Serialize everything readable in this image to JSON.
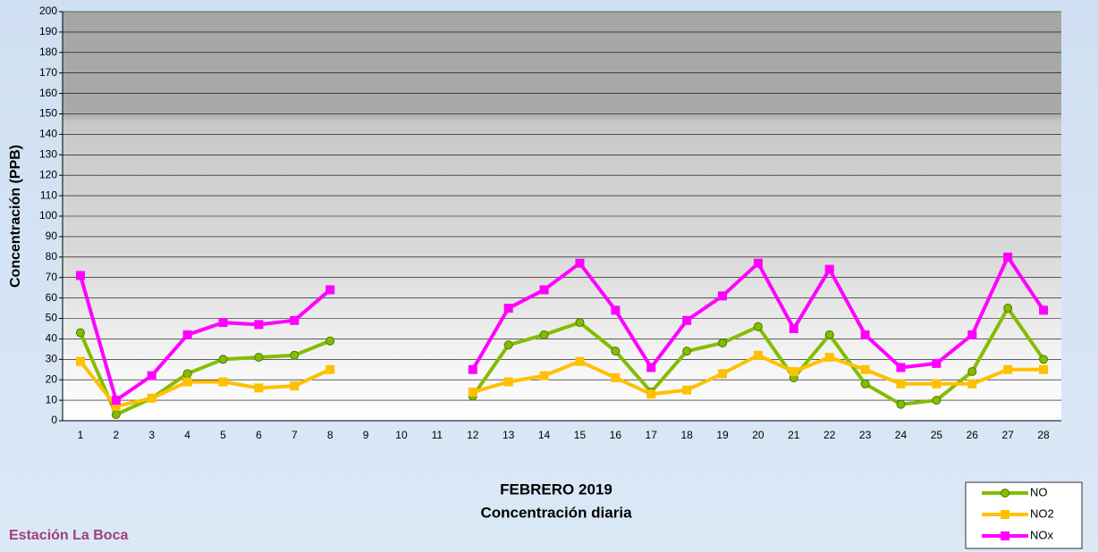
{
  "chart_data": {
    "type": "line",
    "title": "FEBRERO 2019",
    "subtitle": "Concentración diaria",
    "ylabel": "Concentración  (PPB)",
    "annotation": "Estación La Boca",
    "categories": [
      "1",
      "2",
      "3",
      "4",
      "5",
      "6",
      "7",
      "8",
      "9",
      "10",
      "11",
      "12",
      "13",
      "14",
      "15",
      "16",
      "17",
      "18",
      "19",
      "20",
      "21",
      "22",
      "23",
      "24",
      "25",
      "26",
      "27",
      "28"
    ],
    "series": [
      {
        "name": "NO",
        "color": "#84bd00",
        "marker": "circle",
        "values": [
          43,
          3,
          11,
          23,
          30,
          31,
          32,
          39,
          null,
          null,
          null,
          12,
          37,
          42,
          48,
          34,
          14,
          34,
          38,
          46,
          21,
          42,
          18,
          8,
          10,
          24,
          55,
          30
        ]
      },
      {
        "name": "NO2",
        "color": "#ffc000",
        "marker": "square",
        "values": [
          29,
          7,
          11,
          19,
          19,
          16,
          17,
          25,
          null,
          null,
          null,
          14,
          19,
          22,
          29,
          21,
          13,
          15,
          23,
          32,
          24,
          31,
          25,
          18,
          18,
          18,
          25,
          25
        ]
      },
      {
        "name": "NOx",
        "color": "#ff00ff",
        "marker": "square",
        "values": [
          71,
          10,
          22,
          42,
          48,
          47,
          49,
          64,
          null,
          null,
          null,
          25,
          55,
          64,
          77,
          54,
          26,
          49,
          61,
          77,
          45,
          74,
          42,
          26,
          28,
          42,
          80,
          54
        ]
      }
    ],
    "ylim": [
      0,
      200
    ],
    "yticks": [
      0,
      10,
      20,
      30,
      40,
      50,
      60,
      70,
      80,
      90,
      100,
      110,
      120,
      130,
      140,
      150,
      160,
      170,
      180,
      190,
      200
    ],
    "grid": true,
    "legend": "bottom-right"
  }
}
